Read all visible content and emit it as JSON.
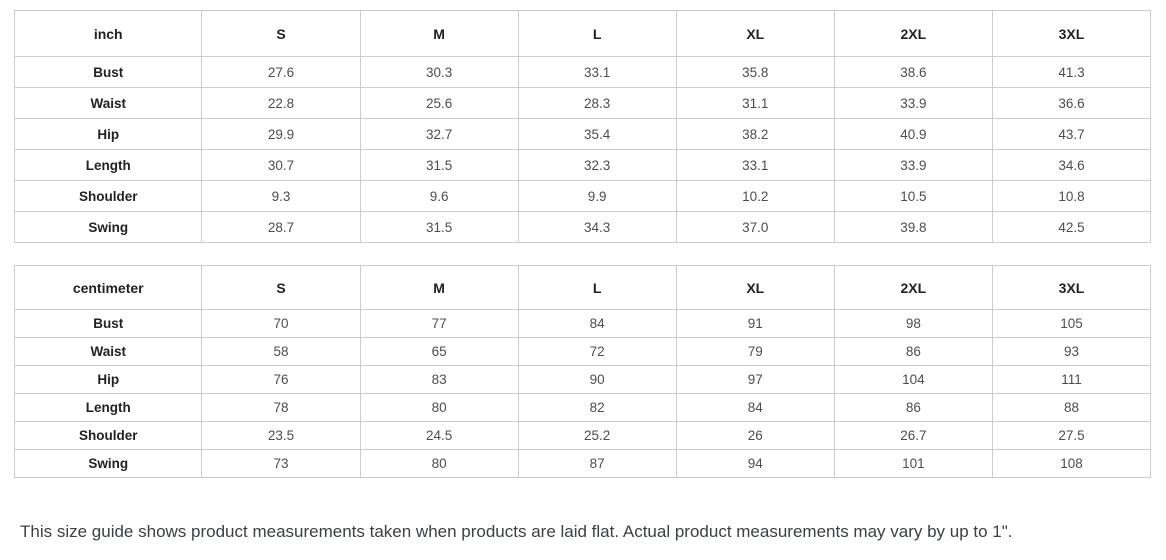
{
  "tables": [
    {
      "unit_label": "inch",
      "columns": [
        "S",
        "M",
        "L",
        "XL",
        "2XL",
        "3XL"
      ],
      "rows": [
        {
          "label": "Bust",
          "values": [
            "27.6",
            "30.3",
            "33.1",
            "35.8",
            "38.6",
            "41.3"
          ]
        },
        {
          "label": "Waist",
          "values": [
            "22.8",
            "25.6",
            "28.3",
            "31.1",
            "33.9",
            "36.6"
          ]
        },
        {
          "label": "Hip",
          "values": [
            "29.9",
            "32.7",
            "35.4",
            "38.2",
            "40.9",
            "43.7"
          ]
        },
        {
          "label": "Length",
          "values": [
            "30.7",
            "31.5",
            "32.3",
            "33.1",
            "33.9",
            "34.6"
          ]
        },
        {
          "label": "Shoulder",
          "values": [
            "9.3",
            "9.6",
            "9.9",
            "10.2",
            "10.5",
            "10.8"
          ]
        },
        {
          "label": "Swing",
          "values": [
            "28.7",
            "31.5",
            "34.3",
            "37.0",
            "39.8",
            "42.5"
          ]
        }
      ]
    },
    {
      "unit_label": "centimeter",
      "columns": [
        "S",
        "M",
        "L",
        "XL",
        "2XL",
        "3XL"
      ],
      "rows": [
        {
          "label": "Bust",
          "values": [
            "70",
            "77",
            "84",
            "91",
            "98",
            "105"
          ]
        },
        {
          "label": "Waist",
          "values": [
            "58",
            "65",
            "72",
            "79",
            "86",
            "93"
          ]
        },
        {
          "label": "Hip",
          "values": [
            "76",
            "83",
            "90",
            "97",
            "104",
            "111"
          ]
        },
        {
          "label": "Length",
          "values": [
            "78",
            "80",
            "82",
            "84",
            "86",
            "88"
          ]
        },
        {
          "label": "Shoulder",
          "values": [
            "23.5",
            "24.5",
            "25.2",
            "26",
            "26.7",
            "27.5"
          ]
        },
        {
          "label": "Swing",
          "values": [
            "73",
            "80",
            "87",
            "94",
            "101",
            "108"
          ]
        }
      ]
    }
  ],
  "footer": {
    "note": "This size guide shows product measurements taken when products are laid flat. Actual product measurements may vary by up to 1\"."
  },
  "colors": {
    "border": "#cccccc",
    "header_text": "#222222",
    "value_text": "#4d4d4d",
    "note_text": "#3c4043"
  }
}
